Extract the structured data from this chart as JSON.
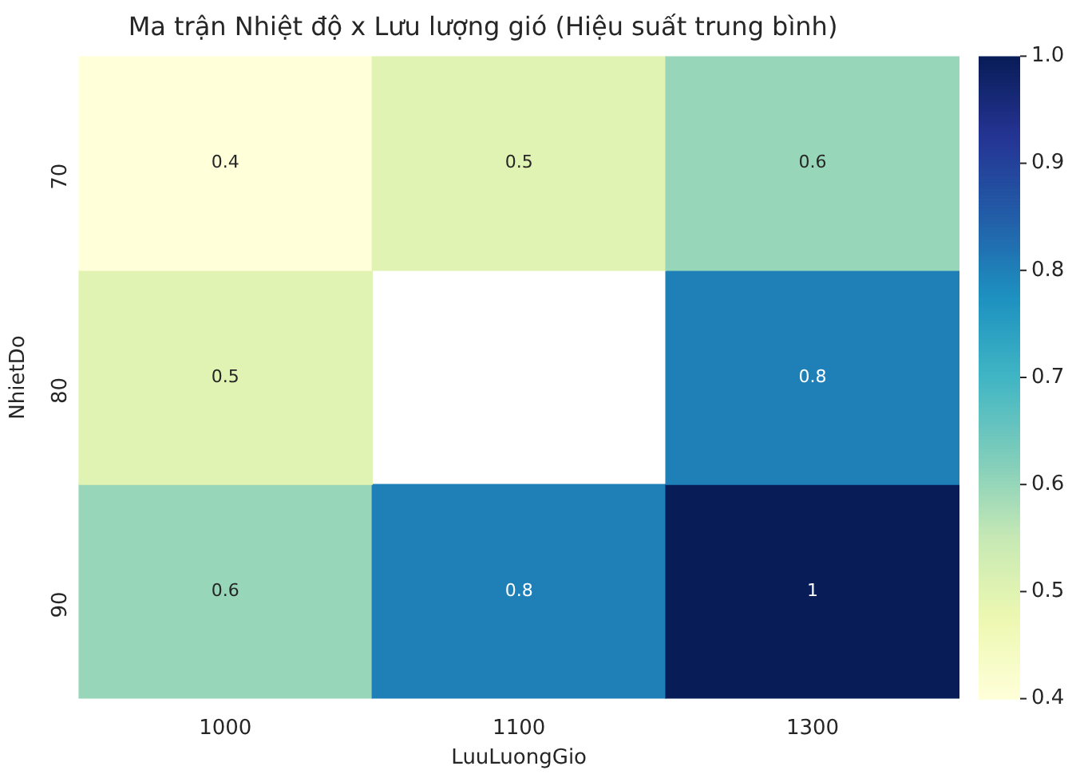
{
  "chart_data": {
    "type": "heatmap",
    "title": "Ma trận Nhiệt độ x Lưu lượng gió (Hiệu suất trung bình)",
    "xlabel": "LuuLuongGio",
    "ylabel": "NhietDo",
    "categories": [
      "1000",
      "1100",
      "1300"
    ],
    "y_categories": [
      "70",
      "80",
      "90"
    ],
    "cells": [
      [
        0.4,
        0.5,
        0.6
      ],
      [
        0.5,
        null,
        0.8
      ],
      [
        0.6,
        0.8,
        1
      ]
    ],
    "clim": [
      0.4,
      1.0
    ],
    "cticks": [
      0.4,
      0.5,
      0.6,
      0.7,
      0.8,
      0.9,
      {
        "value": 1,
        "label": "1.0"
      }
    ],
    "data_labels": true,
    "grid": false,
    "legend": false
  }
}
